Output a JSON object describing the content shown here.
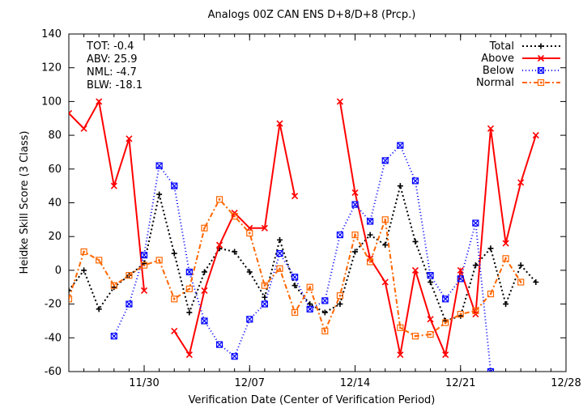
{
  "chart_data": {
    "type": "line",
    "title": "Analogs 00Z CAN ENS D+8/D+8 (Prcp.)",
    "xlabel": "Verification Date (Center of Verification Period)",
    "ylabel": "Heidke Skill Score (3 Class)",
    "ylim": [
      -60,
      140
    ],
    "yticks": [
      -60,
      -40,
      -20,
      0,
      20,
      40,
      60,
      80,
      100,
      120,
      140
    ],
    "xlim": [
      "2023-11-25",
      "2023-12-28"
    ],
    "xtick_dates": [
      "2023-11-30",
      "2023-12-07",
      "2023-12-14",
      "2023-12-21",
      "2023-12-28"
    ],
    "xtick_labels": [
      "11/30",
      "12/07",
      "12/14",
      "12/21",
      "12/28"
    ],
    "grid": false,
    "legend_position": "top-right",
    "stats": [
      {
        "label": "TOT:",
        "value": "-0.4"
      },
      {
        "label": "ABV:",
        "value": "25.9"
      },
      {
        "label": "NML:",
        "value": "-4.7"
      },
      {
        "label": "BLW:",
        "value": "-18.1"
      }
    ],
    "x": [
      "2023-11-25",
      "2023-11-26",
      "2023-11-27",
      "2023-11-28",
      "2023-11-29",
      "2023-11-30",
      "2023-12-01",
      "2023-12-02",
      "2023-12-03",
      "2023-12-04",
      "2023-12-05",
      "2023-12-06",
      "2023-12-07",
      "2023-12-08",
      "2023-12-09",
      "2023-12-10",
      "2023-12-11",
      "2023-12-12",
      "2023-12-13",
      "2023-12-14",
      "2023-12-15",
      "2023-12-16",
      "2023-12-17",
      "2023-12-18",
      "2023-12-19",
      "2023-12-20",
      "2023-12-21",
      "2023-12-22",
      "2023-12-23",
      "2023-12-24",
      "2023-12-25",
      "2023-12-26",
      "2023-12-27",
      "2023-12-28"
    ],
    "series": [
      {
        "name": "Total",
        "color": "#000000",
        "dash": "2,3",
        "marker": "plus",
        "values": [
          -12,
          0,
          -23,
          -10,
          -3,
          4,
          45,
          10,
          -25,
          -1,
          13,
          11,
          -1,
          -16,
          18,
          -9,
          -20,
          -25,
          -20,
          11,
          21,
          15,
          50,
          17,
          -7,
          -30,
          -27,
          3,
          13,
          -20,
          3,
          -7,
          null,
          null
        ]
      },
      {
        "name": "Above",
        "color": "#ff0000",
        "dash": "",
        "marker": "x",
        "values": [
          93,
          84,
          100,
          50,
          78,
          -12,
          null,
          -36,
          -50,
          -12,
          15,
          34,
          25,
          25,
          87,
          44,
          null,
          null,
          100,
          46,
          7,
          -7,
          -50,
          0,
          -29,
          -50,
          0,
          -26,
          84,
          16,
          52,
          80,
          null,
          null
        ]
      },
      {
        "name": "Below",
        "color": "#0000ff",
        "dash": "1,3",
        "marker": "xbox",
        "values": [
          null,
          null,
          null,
          -39,
          -20,
          9,
          62,
          50,
          -1,
          -30,
          -44,
          -51,
          -29,
          -20,
          10,
          -4,
          -23,
          -18,
          21,
          39,
          29,
          65,
          74,
          53,
          -3,
          -17,
          -5,
          28,
          -60,
          null,
          null,
          null,
          null,
          null
        ]
      },
      {
        "name": "Normal",
        "color": "#ff6600",
        "dash": "6,3,2,3",
        "marker": "square",
        "values": [
          -17,
          11,
          6,
          -9,
          -3,
          3,
          6,
          -17,
          -11,
          25,
          42,
          32,
          22,
          -9,
          1,
          -25,
          -10,
          -36,
          -15,
          21,
          5,
          30,
          -34,
          -39,
          -38,
          -31,
          -26,
          -24,
          -14,
          7,
          -7,
          null,
          null,
          null
        ]
      }
    ]
  }
}
